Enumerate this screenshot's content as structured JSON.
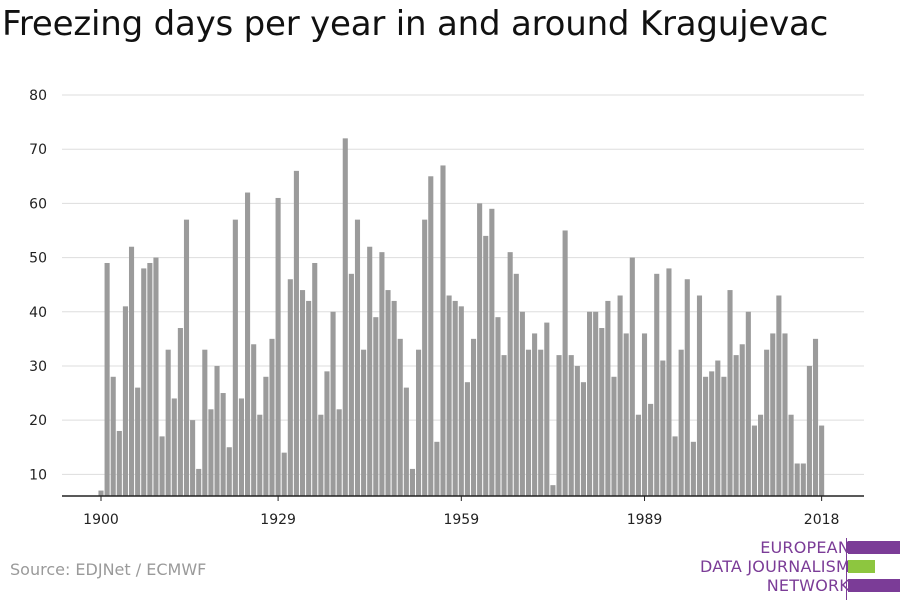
{
  "title": "Freezing days per year in and around Kragujevac",
  "source": "Source: EDJNet / ECMWF",
  "logo": {
    "lines": [
      "EUROPEAN",
      "DATA JOURNALISM",
      "NETWORK"
    ],
    "colors": {
      "purple": "#7b3c97",
      "green": "#8dc63f"
    }
  },
  "colors": {
    "bar": "#9b9b9b",
    "grid": "#dddddd",
    "axis": "#222222"
  },
  "chart_data": {
    "type": "bar",
    "title": "Freezing days per year in and around Kragujevac",
    "xlabel": "",
    "ylabel": "",
    "x_start": 1900,
    "x_end": 2018,
    "x_ticks": [
      "1900",
      "1929",
      "1959",
      "1989",
      "2018"
    ],
    "y_ticks": [
      "10",
      "20",
      "30",
      "40",
      "50",
      "60",
      "70",
      "80"
    ],
    "ylim": [
      6,
      80
    ],
    "grid": true,
    "categories": [
      "1900",
      "1901",
      "1902",
      "1903",
      "1904",
      "1905",
      "1906",
      "1907",
      "1908",
      "1909",
      "1910",
      "1911",
      "1912",
      "1913",
      "1914",
      "1915",
      "1916",
      "1917",
      "1918",
      "1919",
      "1920",
      "1921",
      "1922",
      "1923",
      "1924",
      "1925",
      "1926",
      "1927",
      "1928",
      "1929",
      "1930",
      "1931",
      "1932",
      "1933",
      "1934",
      "1935",
      "1936",
      "1937",
      "1938",
      "1939",
      "1940",
      "1941",
      "1942",
      "1943",
      "1944",
      "1945",
      "1946",
      "1947",
      "1948",
      "1949",
      "1950",
      "1951",
      "1952",
      "1953",
      "1954",
      "1955",
      "1956",
      "1957",
      "1958",
      "1959",
      "1960",
      "1961",
      "1962",
      "1963",
      "1964",
      "1965",
      "1966",
      "1967",
      "1968",
      "1969",
      "1970",
      "1971",
      "1972",
      "1973",
      "1974",
      "1975",
      "1976",
      "1977",
      "1978",
      "1979",
      "1980",
      "1981",
      "1982",
      "1983",
      "1984",
      "1985",
      "1986",
      "1987",
      "1988",
      "1989",
      "1990",
      "1991",
      "1992",
      "1993",
      "1994",
      "1995",
      "1996",
      "1997",
      "1998",
      "1999",
      "2000",
      "2001",
      "2002",
      "2003",
      "2004",
      "2005",
      "2006",
      "2007",
      "2008",
      "2009",
      "2010",
      "2011",
      "2012",
      "2013",
      "2014",
      "2015",
      "2016",
      "2017",
      "2018"
    ],
    "values": [
      7,
      49,
      28,
      18,
      41,
      52,
      26,
      48,
      49,
      50,
      17,
      33,
      24,
      37,
      57,
      20,
      11,
      33,
      22,
      30,
      25,
      15,
      57,
      24,
      62,
      34,
      21,
      28,
      35,
      61,
      14,
      46,
      66,
      44,
      42,
      49,
      21,
      29,
      40,
      22,
      72,
      47,
      57,
      33,
      52,
      39,
      51,
      44,
      42,
      35,
      26,
      11,
      33,
      57,
      65,
      16,
      67,
      43,
      42,
      41,
      27,
      35,
      60,
      54,
      59,
      39,
      32,
      51,
      47,
      40,
      33,
      36,
      33,
      38,
      8,
      32,
      55,
      32,
      30,
      27,
      40,
      40,
      37,
      42,
      28,
      43,
      36,
      50,
      21,
      36,
      23,
      47,
      31,
      48,
      17,
      33,
      46,
      16,
      43,
      28,
      29,
      31,
      28,
      44,
      32,
      34,
      40,
      19,
      21,
      33,
      36,
      43,
      36,
      21,
      12,
      12,
      30,
      35,
      19
    ]
  }
}
